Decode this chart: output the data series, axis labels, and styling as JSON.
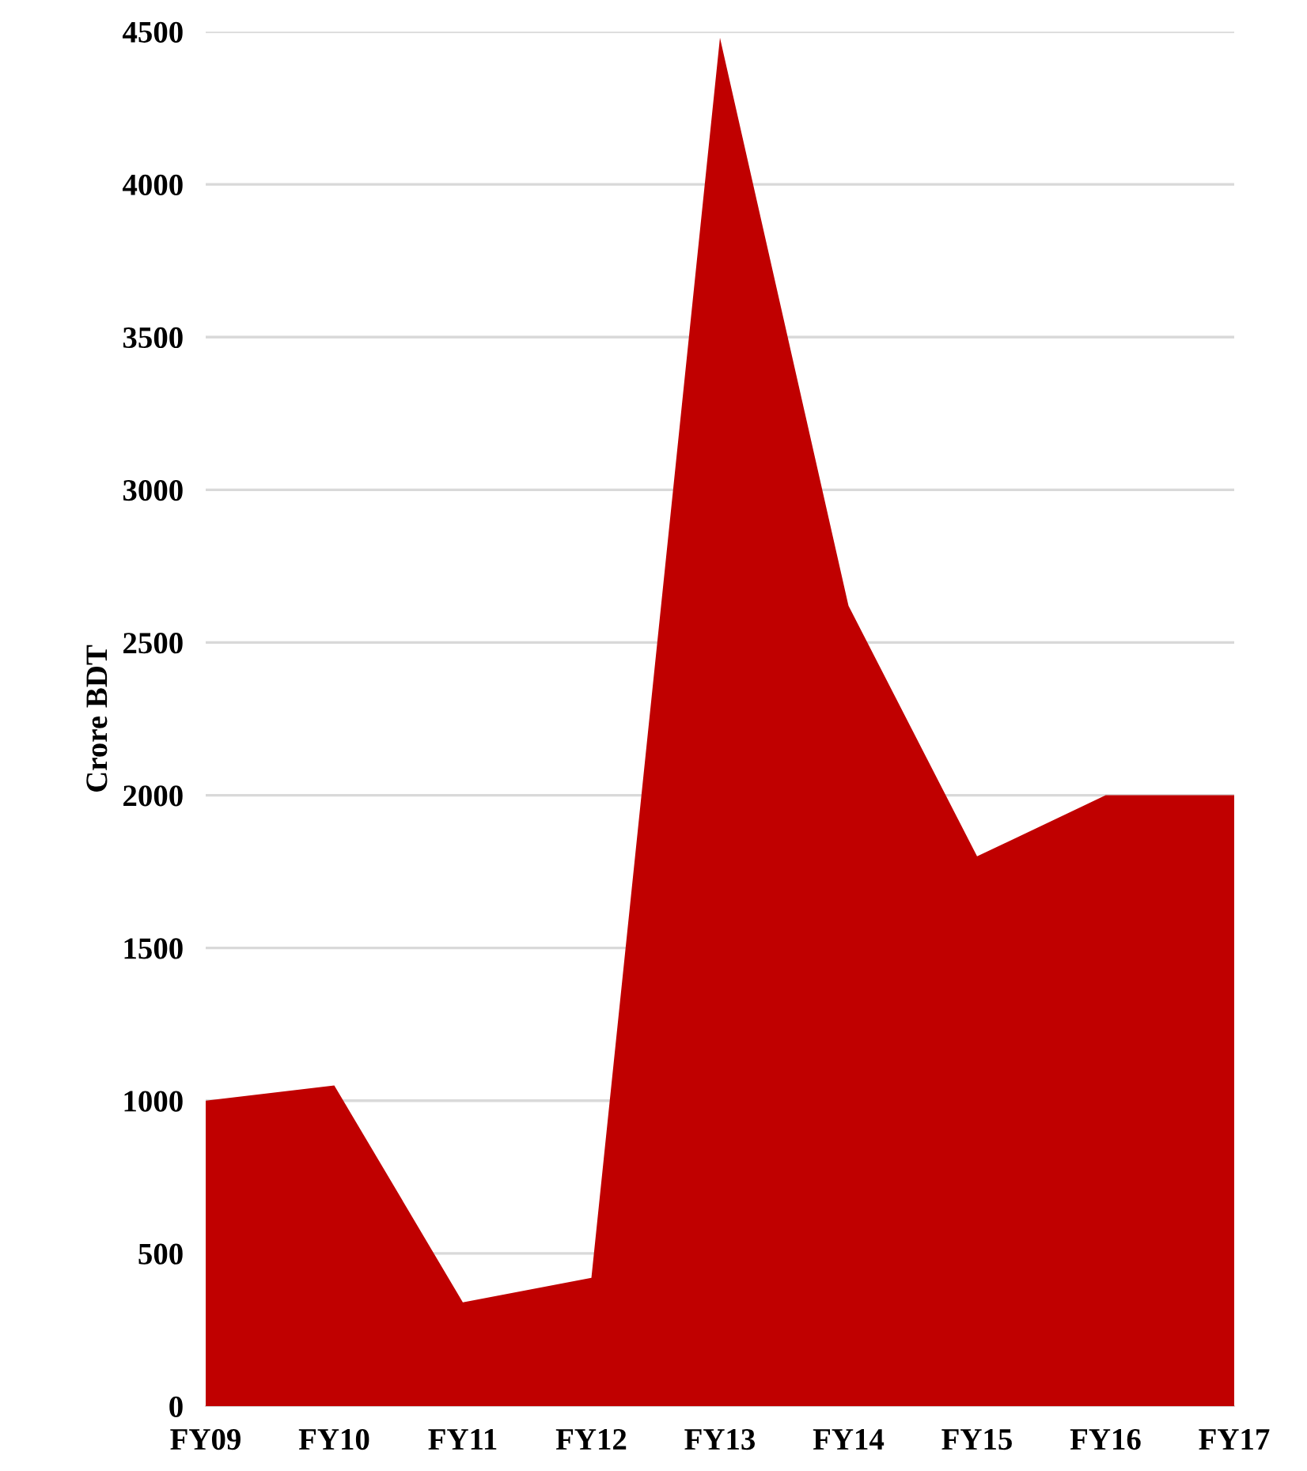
{
  "chart_data": {
    "type": "area",
    "ylabel": "Crore BDT",
    "categories": [
      "FY09",
      "FY10",
      "FY11",
      "FY12",
      "FY13",
      "FY14",
      "FY15",
      "FY16",
      "FY17"
    ],
    "series": [
      {
        "color": "#c00000",
        "values": [
          1000,
          1050,
          340,
          420,
          4480,
          2620,
          1800,
          2000,
          2000
        ]
      }
    ],
    "ylim": [
      0,
      4500
    ],
    "yticks": [
      0,
      500,
      1000,
      1500,
      2000,
      2500,
      3000,
      3500,
      4000,
      4500
    ],
    "grid": "y",
    "legend": false
  }
}
